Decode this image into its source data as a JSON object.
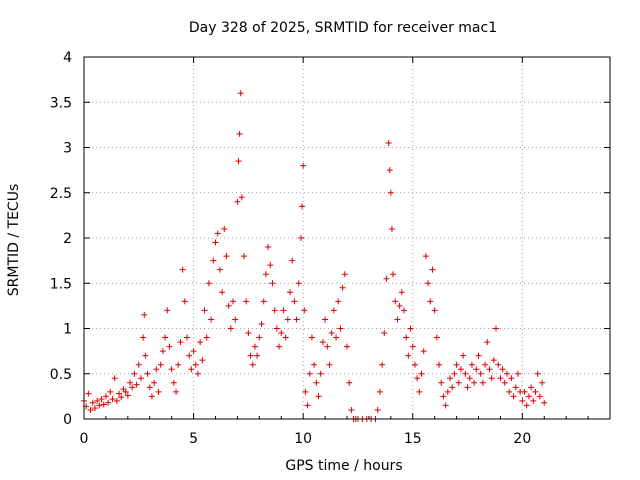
{
  "chart_data": {
    "type": "scatter",
    "title": "Day 328 of 2025, SRMTID for receiver mac1",
    "xlabel": "GPS time / hours",
    "ylabel": "SRMTID / TECUs",
    "xlim": [
      0,
      24
    ],
    "ylim": [
      0,
      4
    ],
    "x_ticks": [
      "0",
      "5",
      "10",
      "15",
      "20"
    ],
    "y_ticks": [
      "0",
      "0.5",
      "1",
      "1.5",
      "2",
      "2.5",
      "3",
      "3.5",
      "4"
    ],
    "grid": true,
    "marker": "+",
    "color": "#e00000",
    "series": [
      {
        "name": "SRMTID",
        "points": [
          [
            0.0,
            0.2
          ],
          [
            0.1,
            0.14
          ],
          [
            0.2,
            0.28
          ],
          [
            0.3,
            0.1
          ],
          [
            0.4,
            0.18
          ],
          [
            0.5,
            0.12
          ],
          [
            0.6,
            0.2
          ],
          [
            0.7,
            0.15
          ],
          [
            0.8,
            0.22
          ],
          [
            0.9,
            0.16
          ],
          [
            1.0,
            0.25
          ],
          [
            1.1,
            0.18
          ],
          [
            1.2,
            0.3
          ],
          [
            1.3,
            0.22
          ],
          [
            1.4,
            0.45
          ],
          [
            1.5,
            0.2
          ],
          [
            1.6,
            0.28
          ],
          [
            1.7,
            0.24
          ],
          [
            1.8,
            0.33
          ],
          [
            1.9,
            0.3
          ],
          [
            2.0,
            0.26
          ],
          [
            2.1,
            0.4
          ],
          [
            2.2,
            0.35
          ],
          [
            2.3,
            0.5
          ],
          [
            2.4,
            0.38
          ],
          [
            2.5,
            0.6
          ],
          [
            2.6,
            0.45
          ],
          [
            2.7,
            0.9
          ],
          [
            2.75,
            1.15
          ],
          [
            2.8,
            0.7
          ],
          [
            2.9,
            0.5
          ],
          [
            3.0,
            0.35
          ],
          [
            3.1,
            0.25
          ],
          [
            3.2,
            0.4
          ],
          [
            3.3,
            0.55
          ],
          [
            3.4,
            0.3
          ],
          [
            3.5,
            0.6
          ],
          [
            3.6,
            0.75
          ],
          [
            3.7,
            0.9
          ],
          [
            3.8,
            1.2
          ],
          [
            3.9,
            0.8
          ],
          [
            4.0,
            0.55
          ],
          [
            4.1,
            0.4
          ],
          [
            4.2,
            0.3
          ],
          [
            4.3,
            0.6
          ],
          [
            4.4,
            0.85
          ],
          [
            4.5,
            1.65
          ],
          [
            4.6,
            1.3
          ],
          [
            4.7,
            0.9
          ],
          [
            4.8,
            0.7
          ],
          [
            4.9,
            0.55
          ],
          [
            5.0,
            0.75
          ],
          [
            5.1,
            0.6
          ],
          [
            5.2,
            0.5
          ],
          [
            5.3,
            0.85
          ],
          [
            5.4,
            0.65
          ],
          [
            5.5,
            1.2
          ],
          [
            5.6,
            0.9
          ],
          [
            5.7,
            1.5
          ],
          [
            5.8,
            1.1
          ],
          [
            5.9,
            1.75
          ],
          [
            6.0,
            1.95
          ],
          [
            6.1,
            2.05
          ],
          [
            6.2,
            1.65
          ],
          [
            6.3,
            1.4
          ],
          [
            6.4,
            2.1
          ],
          [
            6.5,
            1.8
          ],
          [
            6.6,
            1.25
          ],
          [
            6.7,
            1.0
          ],
          [
            6.8,
            1.3
          ],
          [
            6.9,
            1.1
          ],
          [
            7.0,
            2.4
          ],
          [
            7.05,
            2.85
          ],
          [
            7.1,
            3.15
          ],
          [
            7.15,
            3.6
          ],
          [
            7.2,
            2.45
          ],
          [
            7.3,
            1.8
          ],
          [
            7.4,
            1.3
          ],
          [
            7.5,
            0.95
          ],
          [
            7.6,
            0.7
          ],
          [
            7.7,
            0.6
          ],
          [
            7.8,
            0.8
          ],
          [
            7.9,
            0.7
          ],
          [
            8.0,
            0.9
          ],
          [
            8.1,
            1.05
          ],
          [
            8.2,
            1.3
          ],
          [
            8.3,
            1.6
          ],
          [
            8.4,
            1.9
          ],
          [
            8.5,
            1.7
          ],
          [
            8.6,
            1.5
          ],
          [
            8.7,
            1.2
          ],
          [
            8.8,
            1.0
          ],
          [
            8.9,
            0.8
          ],
          [
            9.0,
            0.95
          ],
          [
            9.1,
            1.2
          ],
          [
            9.2,
            0.9
          ],
          [
            9.3,
            1.1
          ],
          [
            9.4,
            1.4
          ],
          [
            9.5,
            1.75
          ],
          [
            9.6,
            1.3
          ],
          [
            9.7,
            1.1
          ],
          [
            9.8,
            1.5
          ],
          [
            9.9,
            2.0
          ],
          [
            9.95,
            2.35
          ],
          [
            10.0,
            2.8
          ],
          [
            10.05,
            1.2
          ],
          [
            10.1,
            0.3
          ],
          [
            10.2,
            0.15
          ],
          [
            10.3,
            0.5
          ],
          [
            10.4,
            0.9
          ],
          [
            10.5,
            0.6
          ],
          [
            10.6,
            0.4
          ],
          [
            10.7,
            0.25
          ],
          [
            10.8,
            0.5
          ],
          [
            10.9,
            0.85
          ],
          [
            11.0,
            1.1
          ],
          [
            11.1,
            0.8
          ],
          [
            11.2,
            0.6
          ],
          [
            11.3,
            0.95
          ],
          [
            11.4,
            1.2
          ],
          [
            11.5,
            0.9
          ],
          [
            11.6,
            1.3
          ],
          [
            11.7,
            1.0
          ],
          [
            11.8,
            1.45
          ],
          [
            11.9,
            1.6
          ],
          [
            12.0,
            0.8
          ],
          [
            12.1,
            0.4
          ],
          [
            12.2,
            0.1
          ],
          [
            12.3,
            0.0
          ],
          [
            12.4,
            0.0
          ],
          [
            12.5,
            0.0
          ],
          [
            12.7,
            0.0
          ],
          [
            12.9,
            0.0
          ],
          [
            13.1,
            0.0
          ],
          [
            13.3,
            0.0
          ],
          [
            13.4,
            0.1
          ],
          [
            13.5,
            0.3
          ],
          [
            13.6,
            0.6
          ],
          [
            13.7,
            0.95
          ],
          [
            13.8,
            1.55
          ],
          [
            13.9,
            3.05
          ],
          [
            13.95,
            2.75
          ],
          [
            14.0,
            2.5
          ],
          [
            14.05,
            2.1
          ],
          [
            14.1,
            1.6
          ],
          [
            14.2,
            1.3
          ],
          [
            14.3,
            1.1
          ],
          [
            14.4,
            1.25
          ],
          [
            14.5,
            1.4
          ],
          [
            14.6,
            1.2
          ],
          [
            14.7,
            0.9
          ],
          [
            14.8,
            0.7
          ],
          [
            14.9,
            1.0
          ],
          [
            15.0,
            0.8
          ],
          [
            15.1,
            0.6
          ],
          [
            15.2,
            0.45
          ],
          [
            15.3,
            0.3
          ],
          [
            15.4,
            0.5
          ],
          [
            15.5,
            0.75
          ],
          [
            15.6,
            1.8
          ],
          [
            15.7,
            1.5
          ],
          [
            15.8,
            1.3
          ],
          [
            15.9,
            1.65
          ],
          [
            16.0,
            1.2
          ],
          [
            16.1,
            0.9
          ],
          [
            16.2,
            0.6
          ],
          [
            16.3,
            0.4
          ],
          [
            16.4,
            0.25
          ],
          [
            16.5,
            0.15
          ],
          [
            16.6,
            0.3
          ],
          [
            16.7,
            0.45
          ],
          [
            16.8,
            0.35
          ],
          [
            16.9,
            0.5
          ],
          [
            17.0,
            0.6
          ],
          [
            17.1,
            0.4
          ],
          [
            17.2,
            0.55
          ],
          [
            17.3,
            0.7
          ],
          [
            17.4,
            0.5
          ],
          [
            17.5,
            0.35
          ],
          [
            17.6,
            0.45
          ],
          [
            17.7,
            0.6
          ],
          [
            17.8,
            0.4
          ],
          [
            17.9,
            0.55
          ],
          [
            18.0,
            0.7
          ],
          [
            18.1,
            0.5
          ],
          [
            18.2,
            0.4
          ],
          [
            18.3,
            0.6
          ],
          [
            18.4,
            0.85
          ],
          [
            18.5,
            0.55
          ],
          [
            18.6,
            0.45
          ],
          [
            18.7,
            0.65
          ],
          [
            18.8,
            1.0
          ],
          [
            18.9,
            0.6
          ],
          [
            19.0,
            0.45
          ],
          [
            19.1,
            0.55
          ],
          [
            19.2,
            0.4
          ],
          [
            19.3,
            0.5
          ],
          [
            19.4,
            0.3
          ],
          [
            19.5,
            0.45
          ],
          [
            19.6,
            0.25
          ],
          [
            19.7,
            0.35
          ],
          [
            19.8,
            0.5
          ],
          [
            19.9,
            0.3
          ],
          [
            20.0,
            0.2
          ],
          [
            20.1,
            0.3
          ],
          [
            20.2,
            0.15
          ],
          [
            20.3,
            0.25
          ],
          [
            20.4,
            0.35
          ],
          [
            20.5,
            0.2
          ],
          [
            20.6,
            0.3
          ],
          [
            20.7,
            0.5
          ],
          [
            20.8,
            0.25
          ],
          [
            20.9,
            0.4
          ],
          [
            21.0,
            0.18
          ]
        ]
      }
    ]
  }
}
